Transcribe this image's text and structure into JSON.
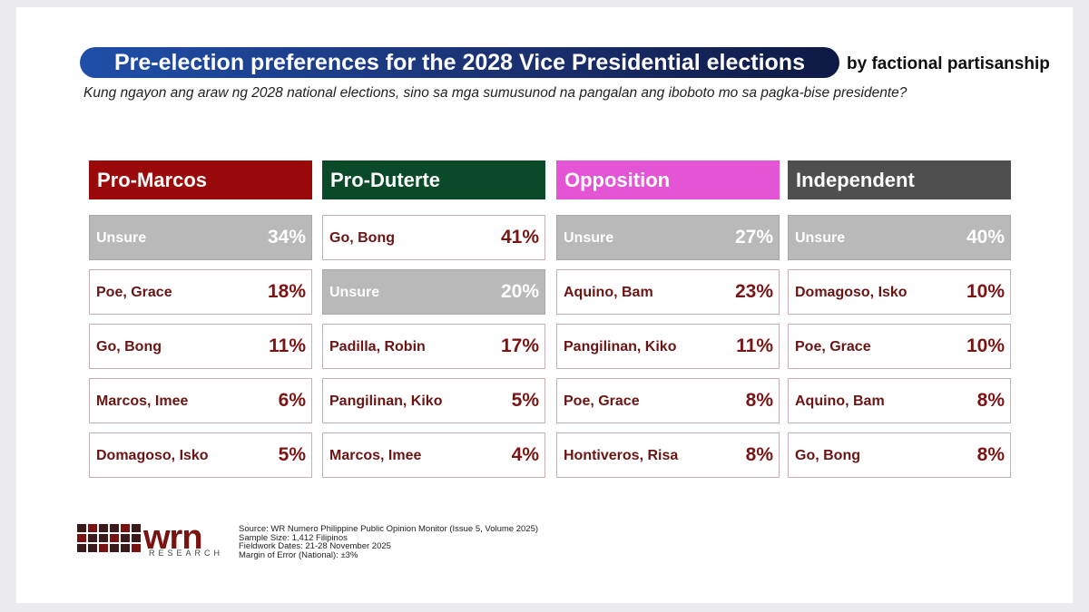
{
  "header": {
    "title": "Pre-election preferences for the 2028 Vice Presidential elections",
    "subtitle": "by factional partisanship",
    "question": "Kung ngayon ang araw ng 2028 national elections, sino sa mga sumusunod na pangalan ang iboboto mo sa pagka-bise presidente?"
  },
  "groups": [
    {
      "name": "Pro-Marcos",
      "rows": [
        {
          "name": "Unsure",
          "value": "34%"
        },
        {
          "name": "Poe, Grace",
          "value": "18%"
        },
        {
          "name": "Go, Bong",
          "value": "11%"
        },
        {
          "name": "Marcos, Imee",
          "value": "6%"
        },
        {
          "name": "Domagoso, Isko",
          "value": "5%"
        }
      ]
    },
    {
      "name": "Pro-Duterte",
      "rows": [
        {
          "name": "Go, Bong",
          "value": "41%"
        },
        {
          "name": "Unsure",
          "value": "20%"
        },
        {
          "name": "Padilla, Robin",
          "value": "17%"
        },
        {
          "name": "Pangilinan, Kiko",
          "value": "5%"
        },
        {
          "name": "Marcos, Imee",
          "value": "4%"
        }
      ]
    },
    {
      "name": "Opposition",
      "rows": [
        {
          "name": "Unsure",
          "value": "27%"
        },
        {
          "name": "Aquino, Bam",
          "value": "23%"
        },
        {
          "name": "Pangilinan, Kiko",
          "value": "11%"
        },
        {
          "name": "Poe, Grace",
          "value": "8%"
        },
        {
          "name": "Hontiveros, Risa",
          "value": "8%"
        }
      ]
    },
    {
      "name": "Independent",
      "rows": [
        {
          "name": "Unsure",
          "value": "40%"
        },
        {
          "name": "Domagoso, Isko",
          "value": "10%"
        },
        {
          "name": "Poe, Grace",
          "value": "10%"
        },
        {
          "name": "Aquino, Bam",
          "value": "8%"
        },
        {
          "name": "Go, Bong",
          "value": "8%"
        }
      ]
    }
  ],
  "footer": {
    "logo": "wrn",
    "logo_sub": "RESEARCH",
    "notes": [
      "Source: WR Numero Philippine Public Opinion Monitor (Issue 5, Volume 2025)",
      "Sample Size: 1,412 Filipinos",
      "Fieldwork Dates: 21-28 November 2025",
      "Margin of Error (National): ±3%"
    ]
  }
}
